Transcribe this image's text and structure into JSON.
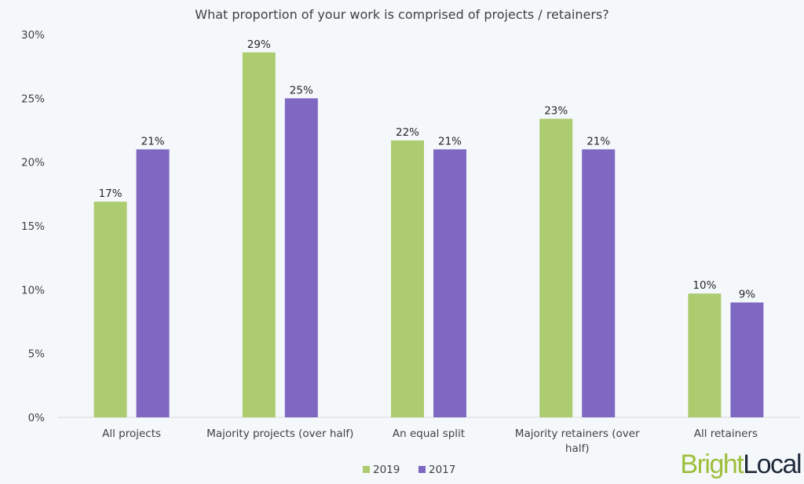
{
  "chart_data": {
    "type": "bar",
    "title": "What proportion of your work is comprised of projects / retainers?",
    "xlabel": "",
    "ylabel": "",
    "ylim": [
      0,
      30
    ],
    "yticks": [
      "0%",
      "5%",
      "10%",
      "15%",
      "20%",
      "25%",
      "30%"
    ],
    "ytick_values": [
      0,
      5,
      10,
      15,
      20,
      25,
      30
    ],
    "grid": false,
    "legend_position": "bottom",
    "categories": [
      [
        "All projects"
      ],
      [
        "Majority projects (over half)"
      ],
      [
        "An equal split"
      ],
      [
        "Majority retainers (over",
        "half)"
      ],
      [
        "All retainers"
      ]
    ],
    "series": [
      {
        "name": "2019",
        "color": "#adcc6f",
        "values": [
          16.9,
          28.6,
          21.7,
          23.4,
          9.7
        ],
        "labels": [
          "17%",
          "29%",
          "22%",
          "23%",
          "10%"
        ]
      },
      {
        "name": "2017",
        "color": "#7e68c2",
        "values": [
          21,
          25,
          21,
          21,
          9
        ],
        "labels": [
          "21%",
          "25%",
          "21%",
          "21%",
          "9%"
        ]
      }
    ]
  },
  "logo": {
    "part1": "Bright",
    "part2": "Local",
    "color1": "#9cbf3b",
    "color2": "#1f2a3a"
  }
}
